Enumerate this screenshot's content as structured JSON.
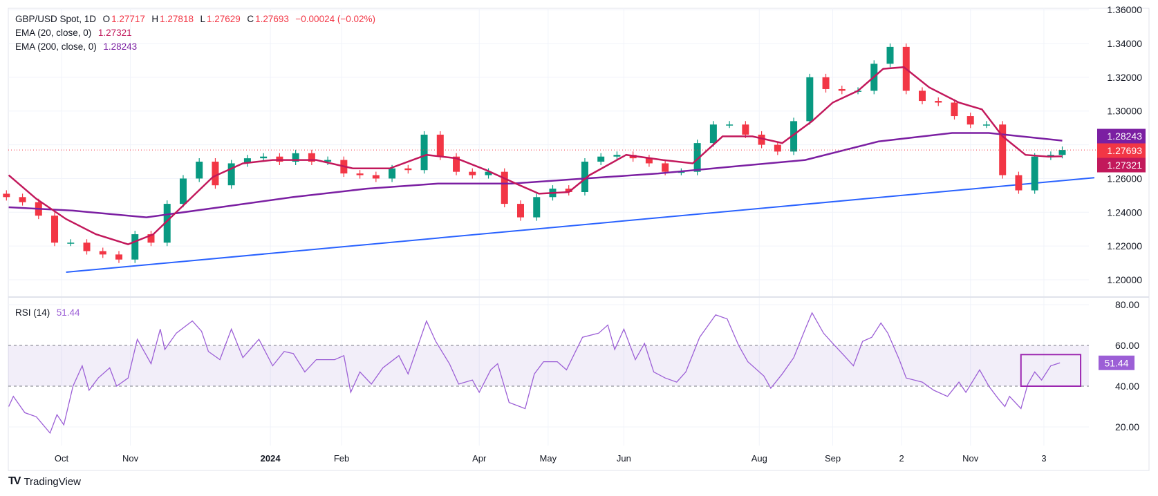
{
  "header": {
    "symbol": "GBP/USD Spot, 1D",
    "o_label": "O",
    "o_value": "1.27717",
    "h_label": "H",
    "h_value": "1.27818",
    "l_label": "L",
    "l_value": "1.27629",
    "c_label": "C",
    "c_value": "1.27693",
    "change": "−0.00024 (−0.02%)",
    "ema20_label": "EMA (20, close, 0)",
    "ema20_value": "1.27321",
    "ema200_label": "EMA (200, close, 0)",
    "ema200_value": "1.28243",
    "rsi_label": "RSI (14)",
    "rsi_value": "51.44"
  },
  "branding": {
    "logo_text": "TradingView"
  },
  "colors": {
    "up": "#089981",
    "down": "#F23645",
    "ema20": "#C2185B",
    "ema200": "#7B1FA2",
    "trendline": "#2962FF",
    "rsi": "#9C5FD6",
    "rsi_box": "#9C27B0"
  },
  "chart_data": [
    {
      "type": "candlestick",
      "title": "GBP/USD Spot, 1D",
      "ylim": [
        1.19,
        1.36
      ],
      "yticks": [
        "1.36000",
        "1.34000",
        "1.32000",
        "1.30000",
        "1.28000",
        "1.26000",
        "1.24000",
        "1.22000",
        "1.20000"
      ],
      "xticks": [
        {
          "label": "Oct",
          "date": "2023-10-02"
        },
        {
          "label": "Nov",
          "date": "2023-11-01"
        },
        {
          "label": "2024",
          "date": "2024-01-01",
          "bold": true
        },
        {
          "label": "Feb",
          "date": "2024-02-01"
        },
        {
          "label": "Apr",
          "date": "2024-04-01"
        },
        {
          "label": "May",
          "date": "2024-05-01"
        },
        {
          "label": "Jun",
          "date": "2024-06-03"
        },
        {
          "label": "Aug",
          "date": "2024-08-01"
        },
        {
          "label": "Sep",
          "date": "2024-09-02"
        },
        {
          "label": "2",
          "date": "2024-10-02"
        },
        {
          "label": "Nov",
          "date": "2024-11-01"
        },
        {
          "label": "3",
          "date": "2024-12-03"
        }
      ],
      "grid": true,
      "last_price": 1.27693,
      "price_labels": [
        {
          "value": "1.28243",
          "series": "ema200"
        },
        {
          "value": "1.27693",
          "series": "close"
        },
        {
          "value": "1.27321",
          "series": "ema20"
        }
      ],
      "closes": [
        [
          "2023-09-08",
          1.249
        ],
        [
          "2023-09-15",
          1.246
        ],
        [
          "2023-09-22",
          1.238
        ],
        [
          "2023-09-29",
          1.222
        ],
        [
          "2023-10-06",
          1.222
        ],
        [
          "2023-10-13",
          1.217
        ],
        [
          "2023-10-20",
          1.215
        ],
        [
          "2023-10-27",
          1.212
        ],
        [
          "2023-11-03",
          1.227
        ],
        [
          "2023-11-10",
          1.222
        ],
        [
          "2023-11-17",
          1.245
        ],
        [
          "2023-11-24",
          1.26
        ],
        [
          "2023-12-01",
          1.27
        ],
        [
          "2023-12-08",
          1.256
        ],
        [
          "2023-12-15",
          1.269
        ],
        [
          "2023-12-22",
          1.272
        ],
        [
          "2023-12-29",
          1.273
        ],
        [
          "2024-01-05",
          1.27
        ],
        [
          "2024-01-12",
          1.275
        ],
        [
          "2024-01-19",
          1.27
        ],
        [
          "2024-01-26",
          1.271
        ],
        [
          "2024-02-02",
          1.263
        ],
        [
          "2024-02-09",
          1.262
        ],
        [
          "2024-02-16",
          1.26
        ],
        [
          "2024-02-23",
          1.266
        ],
        [
          "2024-03-01",
          1.265
        ],
        [
          "2024-03-08",
          1.286
        ],
        [
          "2024-03-15",
          1.273
        ],
        [
          "2024-03-22",
          1.264
        ],
        [
          "2024-03-29",
          1.262
        ],
        [
          "2024-04-05",
          1.264
        ],
        [
          "2024-04-12",
          1.245
        ],
        [
          "2024-04-19",
          1.237
        ],
        [
          "2024-04-26",
          1.249
        ],
        [
          "2024-05-03",
          1.254
        ],
        [
          "2024-05-10",
          1.252
        ],
        [
          "2024-05-17",
          1.27
        ],
        [
          "2024-05-24",
          1.273
        ],
        [
          "2024-05-31",
          1.274
        ],
        [
          "2024-06-07",
          1.272
        ],
        [
          "2024-06-14",
          1.269
        ],
        [
          "2024-06-21",
          1.264
        ],
        [
          "2024-06-28",
          1.264
        ],
        [
          "2024-07-05",
          1.281
        ],
        [
          "2024-07-12",
          1.292
        ],
        [
          "2024-07-19",
          1.292
        ],
        [
          "2024-07-26",
          1.286
        ],
        [
          "2024-08-02",
          1.28
        ],
        [
          "2024-08-09",
          1.276
        ],
        [
          "2024-08-16",
          1.294
        ],
        [
          "2024-08-23",
          1.32
        ],
        [
          "2024-08-30",
          1.313
        ],
        [
          "2024-09-06",
          1.312
        ],
        [
          "2024-09-13",
          1.312
        ],
        [
          "2024-09-20",
          1.328
        ],
        [
          "2024-09-27",
          1.338
        ],
        [
          "2024-10-04",
          1.312
        ],
        [
          "2024-10-11",
          1.306
        ],
        [
          "2024-10-18",
          1.305
        ],
        [
          "2024-10-25",
          1.297
        ],
        [
          "2024-11-01",
          1.292
        ],
        [
          "2024-11-08",
          1.292
        ],
        [
          "2024-11-15",
          1.262
        ],
        [
          "2024-11-22",
          1.253
        ],
        [
          "2024-11-29",
          1.273
        ],
        [
          "2024-12-06",
          1.274
        ],
        [
          "2024-12-11",
          1.27693
        ]
      ],
      "ema20": [
        [
          "2023-09-09",
          1.262
        ],
        [
          "2023-09-21",
          1.248
        ],
        [
          "2023-10-04",
          1.236
        ],
        [
          "2023-10-17",
          1.227
        ],
        [
          "2023-10-31",
          1.221
        ],
        [
          "2023-11-11",
          1.227
        ],
        [
          "2023-11-24",
          1.244
        ],
        [
          "2023-12-07",
          1.261
        ],
        [
          "2023-12-20",
          1.269
        ],
        [
          "2024-01-02",
          1.271
        ],
        [
          "2024-01-21",
          1.271
        ],
        [
          "2024-02-06",
          1.266
        ],
        [
          "2024-02-22",
          1.266
        ],
        [
          "2024-03-09",
          1.274
        ],
        [
          "2024-03-22",
          1.272
        ],
        [
          "2024-04-04",
          1.265
        ],
        [
          "2024-04-17",
          1.257
        ],
        [
          "2024-04-27",
          1.251
        ],
        [
          "2024-05-10",
          1.252
        ],
        [
          "2024-05-19",
          1.262
        ],
        [
          "2024-06-04",
          1.274
        ],
        [
          "2024-06-20",
          1.271
        ],
        [
          "2024-07-03",
          1.269
        ],
        [
          "2024-07-16",
          1.285
        ],
        [
          "2024-07-29",
          1.285
        ],
        [
          "2024-08-11",
          1.281
        ],
        [
          "2024-08-24",
          1.294
        ],
        [
          "2024-09-02",
          1.305
        ],
        [
          "2024-09-13",
          1.312
        ],
        [
          "2024-09-24",
          1.325
        ],
        [
          "2024-10-03",
          1.326
        ],
        [
          "2024-10-14",
          1.314
        ],
        [
          "2024-10-27",
          1.305
        ],
        [
          "2024-11-06",
          1.301
        ],
        [
          "2024-11-15",
          1.285
        ],
        [
          "2024-11-25",
          1.274
        ],
        [
          "2024-12-05",
          1.273
        ],
        [
          "2024-12-11",
          1.27321
        ]
      ],
      "ema200": [
        [
          "2023-09-09",
          1.243
        ],
        [
          "2023-10-07",
          1.241
        ],
        [
          "2023-11-08",
          1.237
        ],
        [
          "2023-12-10",
          1.243
        ],
        [
          "2024-01-11",
          1.249
        ],
        [
          "2024-02-12",
          1.254
        ],
        [
          "2024-03-14",
          1.257
        ],
        [
          "2024-04-15",
          1.257
        ],
        [
          "2024-05-17",
          1.26
        ],
        [
          "2024-06-18",
          1.263
        ],
        [
          "2024-07-20",
          1.267
        ],
        [
          "2024-08-21",
          1.271
        ],
        [
          "2024-09-22",
          1.282
        ],
        [
          "2024-10-24",
          1.287
        ],
        [
          "2024-11-09",
          1.287
        ],
        [
          "2024-12-11",
          1.28243
        ]
      ],
      "trendline": [
        [
          "2023-10-04",
          1.2045
        ],
        [
          "2024-12-25",
          1.2605
        ]
      ]
    },
    {
      "type": "line",
      "title": "RSI (14)",
      "ylim": [
        10,
        85
      ],
      "yticks": [
        "80.00",
        "60.00",
        "40.00",
        "20.00"
      ],
      "band": [
        40,
        60
      ],
      "last_value": "51.44",
      "values": [
        [
          "2023-09-09",
          30
        ],
        [
          "2023-09-11",
          35
        ],
        [
          "2023-09-16",
          27
        ],
        [
          "2023-09-21",
          25
        ],
        [
          "2023-09-27",
          17
        ],
        [
          "2023-09-30",
          26
        ],
        [
          "2023-10-03",
          21
        ],
        [
          "2023-10-07",
          40
        ],
        [
          "2023-10-11",
          50
        ],
        [
          "2023-10-14",
          38
        ],
        [
          "2023-10-18",
          44
        ],
        [
          "2023-10-23",
          49
        ],
        [
          "2023-10-26",
          40
        ],
        [
          "2023-10-31",
          44
        ],
        [
          "2023-11-04",
          63
        ],
        [
          "2023-11-10",
          51
        ],
        [
          "2023-11-14",
          68
        ],
        [
          "2023-11-16",
          58
        ],
        [
          "2023-11-21",
          66
        ],
        [
          "2023-11-28",
          72
        ],
        [
          "2023-12-02",
          67
        ],
        [
          "2023-12-05",
          57
        ],
        [
          "2023-12-10",
          53
        ],
        [
          "2023-12-15",
          68
        ],
        [
          "2023-12-20",
          54
        ],
        [
          "2023-12-27",
          63
        ],
        [
          "2024-01-02",
          50
        ],
        [
          "2024-01-07",
          57
        ],
        [
          "2024-01-11",
          56
        ],
        [
          "2024-01-16",
          47
        ],
        [
          "2024-01-21",
          53
        ],
        [
          "2024-01-29",
          53
        ],
        [
          "2024-02-02",
          55
        ],
        [
          "2024-02-05",
          37
        ],
        [
          "2024-02-09",
          47
        ],
        [
          "2024-02-14",
          41
        ],
        [
          "2024-02-19",
          49
        ],
        [
          "2024-02-26",
          55
        ],
        [
          "2024-03-01",
          46
        ],
        [
          "2024-03-09",
          72
        ],
        [
          "2024-03-13",
          62
        ],
        [
          "2024-03-19",
          51
        ],
        [
          "2024-03-23",
          41
        ],
        [
          "2024-03-29",
          43
        ],
        [
          "2024-04-01",
          37
        ],
        [
          "2024-04-06",
          48
        ],
        [
          "2024-04-09",
          51
        ],
        [
          "2024-04-14",
          32
        ],
        [
          "2024-04-21",
          29
        ],
        [
          "2024-04-25",
          46
        ],
        [
          "2024-04-29",
          52
        ],
        [
          "2024-05-05",
          52
        ],
        [
          "2024-05-09",
          48
        ],
        [
          "2024-05-16",
          64
        ],
        [
          "2024-05-23",
          66
        ],
        [
          "2024-05-27",
          70
        ],
        [
          "2024-05-30",
          58
        ],
        [
          "2024-06-03",
          68
        ],
        [
          "2024-06-08",
          53
        ],
        [
          "2024-06-12",
          61
        ],
        [
          "2024-06-16",
          47
        ],
        [
          "2024-06-21",
          44
        ],
        [
          "2024-06-26",
          42
        ],
        [
          "2024-06-30",
          47
        ],
        [
          "2024-07-06",
          64
        ],
        [
          "2024-07-13",
          75
        ],
        [
          "2024-07-18",
          73
        ],
        [
          "2024-07-23",
          60
        ],
        [
          "2024-07-27",
          52
        ],
        [
          "2024-08-03",
          45
        ],
        [
          "2024-08-06",
          39
        ],
        [
          "2024-08-11",
          46
        ],
        [
          "2024-08-16",
          54
        ],
        [
          "2024-08-21",
          68
        ],
        [
          "2024-08-24",
          76
        ],
        [
          "2024-08-29",
          66
        ],
        [
          "2024-09-02",
          61
        ],
        [
          "2024-09-07",
          55
        ],
        [
          "2024-09-11",
          50
        ],
        [
          "2024-09-15",
          62
        ],
        [
          "2024-09-19",
          64
        ],
        [
          "2024-09-23",
          71
        ],
        [
          "2024-09-26",
          66
        ],
        [
          "2024-10-01",
          53
        ],
        [
          "2024-10-04",
          44
        ],
        [
          "2024-10-11",
          42
        ],
        [
          "2024-10-16",
          38
        ],
        [
          "2024-10-22",
          35
        ],
        [
          "2024-10-27",
          42
        ],
        [
          "2024-10-30",
          37
        ],
        [
          "2024-11-05",
          48
        ],
        [
          "2024-11-09",
          40
        ],
        [
          "2024-11-13",
          34
        ],
        [
          "2024-11-16",
          30
        ],
        [
          "2024-11-18",
          35
        ],
        [
          "2024-11-23",
          29
        ],
        [
          "2024-11-26",
          41
        ],
        [
          "2024-11-29",
          47
        ],
        [
          "2024-12-02",
          43
        ],
        [
          "2024-12-06",
          50
        ],
        [
          "2024-12-10",
          51.44
        ]
      ],
      "annotation_box": {
        "from": "2024-11-23",
        "to": "2024-12-19",
        "low": 40,
        "high": 55.5
      }
    }
  ]
}
